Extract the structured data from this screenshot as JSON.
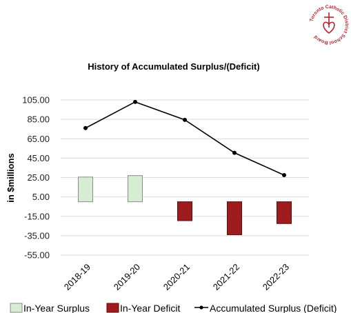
{
  "logo": {
    "text": "Toronto Catholic District School Board",
    "color": "#b5242c"
  },
  "chart_data": {
    "type": "bar",
    "title": "History of Accumulated Surplus/(Deficit)",
    "ylabel": "in $millions",
    "xlabel": "",
    "categories": [
      "2018-19",
      "2019-20",
      "2020-21",
      "2021-22",
      "2022-23"
    ],
    "ylim": [
      -55,
      105
    ],
    "yticks": [
      "105.00",
      "85.00",
      "65.00",
      "45.00",
      "25.00",
      "5.00",
      "-15.00",
      "-35.00",
      "-55.00"
    ],
    "ytick_values": [
      105,
      85,
      65,
      45,
      25,
      5,
      -15,
      -35,
      -55
    ],
    "grid": true,
    "series": [
      {
        "name": "In-Year Surplus",
        "kind": "bar",
        "color": "#d6ecd3",
        "edge": "#8a8a8a",
        "values": [
          25.5,
          27.0,
          null,
          null,
          null
        ]
      },
      {
        "name": "In-Year Deficit",
        "kind": "bar",
        "color": "#9e1b1e",
        "edge": "#5a0c0e",
        "values": [
          null,
          null,
          -19.5,
          -34.0,
          -22.5
        ]
      },
      {
        "name": "Accumulated Surplus (Deficit)",
        "kind": "line",
        "color": "#000000",
        "values": [
          76.0,
          103.0,
          84.5,
          50.5,
          27.5
        ]
      }
    ],
    "legend_position": "bottom"
  }
}
